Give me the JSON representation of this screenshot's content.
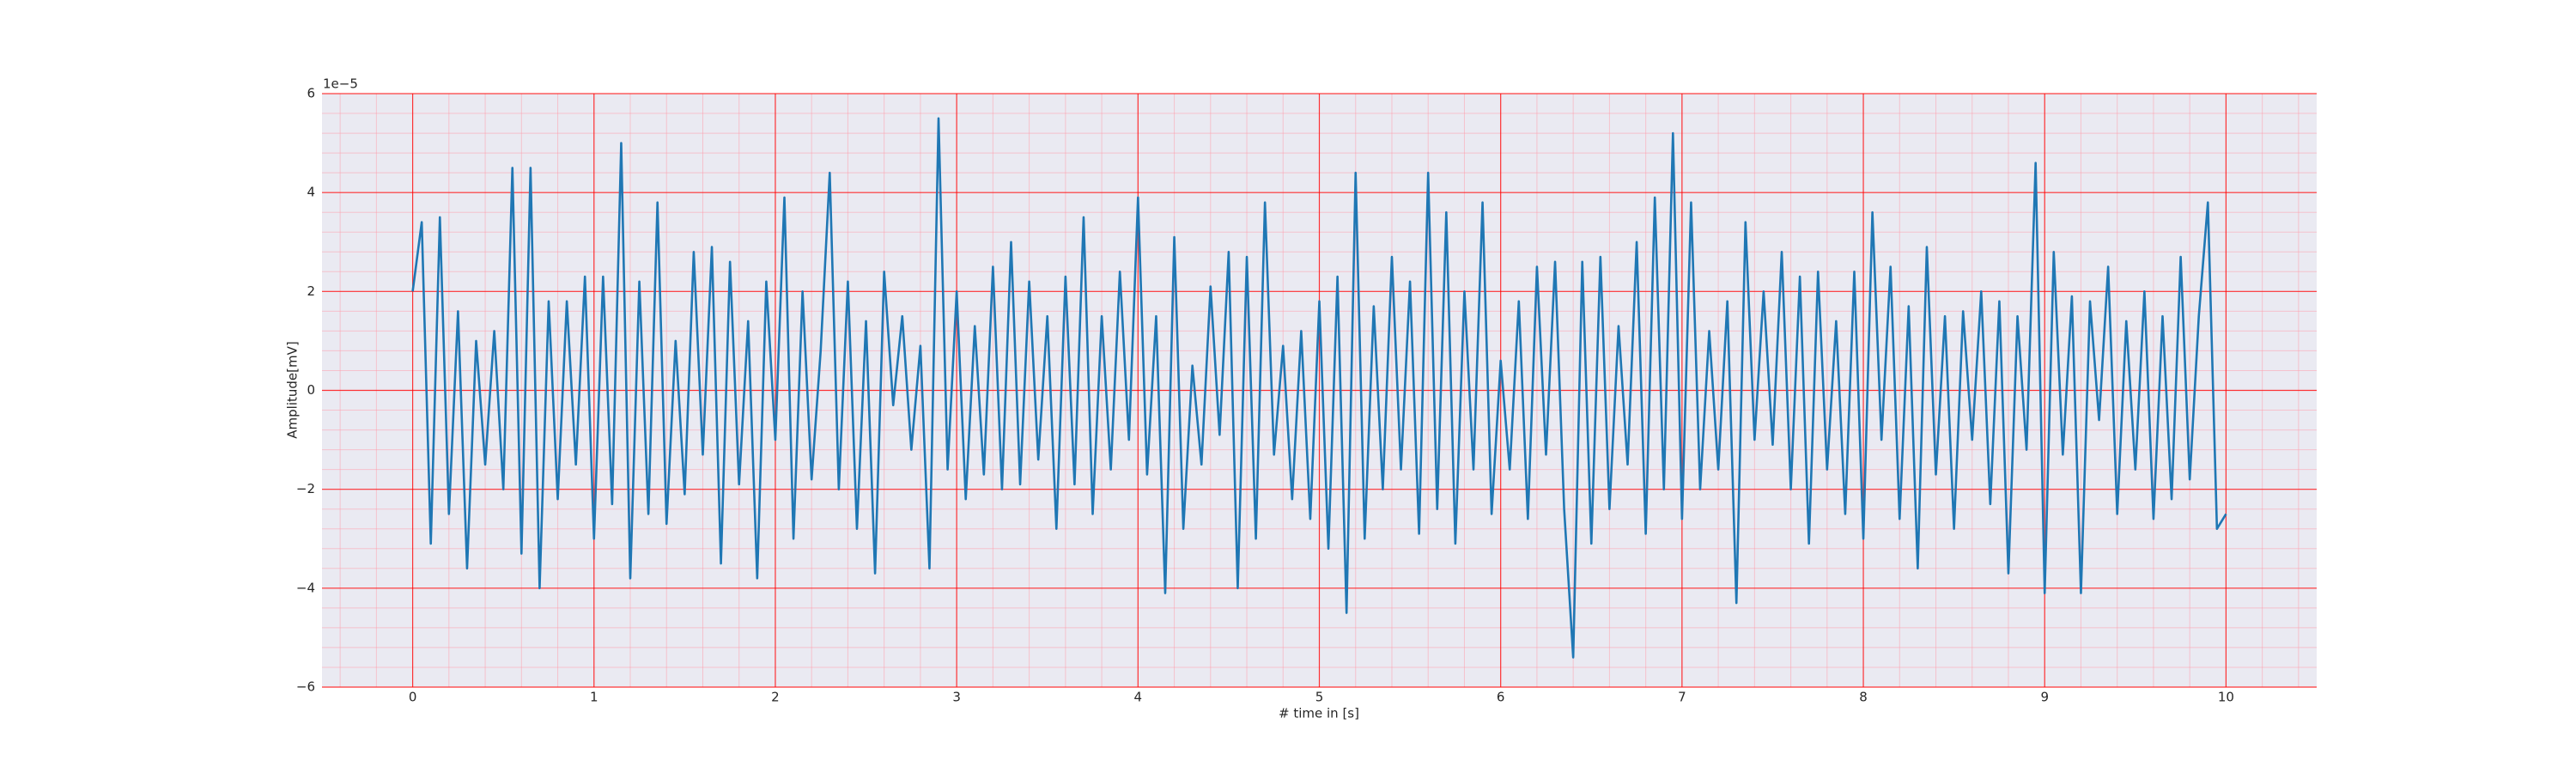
{
  "chart_data": {
    "type": "line",
    "x_label": "# time in [s]",
    "y_label": "Amplitude[mV]",
    "y_offset_label": "1e−5",
    "xlim": [
      -0.5,
      10.5
    ],
    "ylim": [
      -6e-05,
      6e-05
    ],
    "xticks": [
      0,
      1,
      2,
      3,
      4,
      5,
      6,
      7,
      8,
      9,
      10
    ],
    "yticks": [
      {
        "value": -6e-05,
        "label": "−6"
      },
      {
        "value": -4e-05,
        "label": "−4"
      },
      {
        "value": -2e-05,
        "label": "−2"
      },
      {
        "value": 0,
        "label": "0"
      },
      {
        "value": 2e-05,
        "label": "2"
      },
      {
        "value": 4e-05,
        "label": "4"
      },
      {
        "value": 6e-05,
        "label": "6"
      }
    ],
    "grid": true,
    "grid_color": "#ff0000",
    "minor_grid": true,
    "minor_grid_color": "#ff9aa8",
    "minor_divisions": 5,
    "background": "#eaeaf2",
    "series": [
      {
        "color": "#1f77b4",
        "x": [
          0,
          0.05,
          0.1,
          0.15,
          0.2,
          0.25,
          0.3,
          0.35,
          0.4,
          0.45,
          0.5,
          0.55,
          0.6,
          0.65,
          0.7,
          0.75,
          0.8,
          0.85,
          0.9,
          0.95,
          1,
          1.05,
          1.1,
          1.15,
          1.2,
          1.25,
          1.3,
          1.35,
          1.4,
          1.45,
          1.5,
          1.55,
          1.6,
          1.65,
          1.7,
          1.75,
          1.8,
          1.85,
          1.9,
          1.95,
          2,
          2.05,
          2.1,
          2.15,
          2.2,
          2.25,
          2.3,
          2.35,
          2.4,
          2.45,
          2.5,
          2.55,
          2.6,
          2.65,
          2.7,
          2.75,
          2.8,
          2.85,
          2.9,
          2.95,
          3,
          3.05,
          3.1,
          3.15,
          3.2,
          3.25,
          3.3,
          3.35,
          3.4,
          3.45,
          3.5,
          3.55,
          3.6,
          3.65,
          3.7,
          3.75,
          3.8,
          3.85,
          3.9,
          3.95,
          4,
          4.05,
          4.1,
          4.15,
          4.2,
          4.25,
          4.3,
          4.35,
          4.4,
          4.45,
          4.5,
          4.55,
          4.6,
          4.65,
          4.7,
          4.75,
          4.8,
          4.85,
          4.9,
          4.95,
          5,
          5.05,
          5.1,
          5.15,
          5.2,
          5.25,
          5.3,
          5.35,
          5.4,
          5.45,
          5.5,
          5.55,
          5.6,
          5.65,
          5.7,
          5.75,
          5.8,
          5.85,
          5.9,
          5.95,
          6,
          6.05,
          6.1,
          6.15,
          6.2,
          6.25,
          6.3,
          6.35,
          6.4,
          6.45,
          6.5,
          6.55,
          6.6,
          6.65,
          6.7,
          6.75,
          6.8,
          6.85,
          6.9,
          6.95,
          7,
          7.05,
          7.1,
          7.15,
          7.2,
          7.25,
          7.3,
          7.35,
          7.4,
          7.45,
          7.5,
          7.55,
          7.6,
          7.65,
          7.7,
          7.75,
          7.8,
          7.85,
          7.9,
          7.95,
          8,
          8.05,
          8.1,
          8.15,
          8.2,
          8.25,
          8.3,
          8.35,
          8.4,
          8.45,
          8.5,
          8.55,
          8.6,
          8.65,
          8.7,
          8.75,
          8.8,
          8.85,
          8.9,
          8.95,
          9,
          9.05,
          9.1,
          9.15,
          9.2,
          9.25,
          9.3,
          9.35,
          9.4,
          9.45,
          9.5,
          9.55,
          9.6,
          9.65,
          9.7,
          9.75,
          9.8,
          9.85,
          9.9,
          9.95,
          10
        ],
        "values": [
          2e-05,
          3.4e-05,
          -3.1e-05,
          3.5e-05,
          -2.5e-05,
          1.6e-05,
          -3.6e-05,
          1e-05,
          -1.5e-05,
          1.2e-05,
          -2e-05,
          4.5e-05,
          -3.3e-05,
          4.5e-05,
          -4e-05,
          1.8e-05,
          -2.2e-05,
          1.8e-05,
          -1.5e-05,
          2.3e-05,
          -3e-05,
          2.3e-05,
          -2.3e-05,
          5e-05,
          -3.8e-05,
          2.2e-05,
          -2.5e-05,
          3.8e-05,
          -2.7e-05,
          1e-05,
          -2.1e-05,
          2.8e-05,
          -1.3e-05,
          2.9e-05,
          -3.5e-05,
          2.6e-05,
          -1.9e-05,
          1.4e-05,
          -3.8e-05,
          2.2e-05,
          -1e-05,
          3.9e-05,
          -3e-05,
          2e-05,
          -1.8e-05,
          8e-06,
          4.4e-05,
          -2e-05,
          2.2e-05,
          -2.8e-05,
          1.4e-05,
          -3.7e-05,
          2.4e-05,
          -3e-06,
          1.5e-05,
          -1.2e-05,
          9e-06,
          -3.6e-05,
          5.5e-05,
          -1.6e-05,
          2e-05,
          -2.2e-05,
          1.3e-05,
          -1.7e-05,
          2.5e-05,
          -2e-05,
          3e-05,
          -1.9e-05,
          2.2e-05,
          -1.4e-05,
          1.5e-05,
          -2.8e-05,
          2.3e-05,
          -1.9e-05,
          3.5e-05,
          -2.5e-05,
          1.5e-05,
          -1.6e-05,
          2.4e-05,
          -1e-05,
          3.9e-05,
          -1.7e-05,
          1.5e-05,
          -4.1e-05,
          3.1e-05,
          -2.8e-05,
          5e-06,
          -1.5e-05,
          2.1e-05,
          -9e-06,
          2.8e-05,
          -4e-05,
          2.7e-05,
          -3e-05,
          3.8e-05,
          -1.3e-05,
          9e-06,
          -2.2e-05,
          1.2e-05,
          -2.6e-05,
          1.8e-05,
          -3.2e-05,
          2.3e-05,
          -4.5e-05,
          4.4e-05,
          -3e-05,
          1.7e-05,
          -2e-05,
          2.7e-05,
          -1.6e-05,
          2.2e-05,
          -2.9e-05,
          4.4e-05,
          -2.4e-05,
          3.6e-05,
          -3.1e-05,
          2e-05,
          -1.6e-05,
          3.8e-05,
          -2.5e-05,
          6e-06,
          -1.6e-05,
          1.8e-05,
          -2.6e-05,
          2.5e-05,
          -1.3e-05,
          2.6e-05,
          -2.4e-05,
          -5.4e-05,
          2.6e-05,
          -3.1e-05,
          2.7e-05,
          -2.4e-05,
          1.3e-05,
          -1.5e-05,
          3e-05,
          -2.9e-05,
          3.9e-05,
          -2e-05,
          5.2e-05,
          -2.6e-05,
          3.8e-05,
          -2e-05,
          1.2e-05,
          -1.6e-05,
          1.8e-05,
          -4.3e-05,
          3.4e-05,
          -1e-05,
          2e-05,
          -1.1e-05,
          2.8e-05,
          -2e-05,
          2.3e-05,
          -3.1e-05,
          2.4e-05,
          -1.6e-05,
          1.4e-05,
          -2.5e-05,
          2.4e-05,
          -3e-05,
          3.6e-05,
          -1e-05,
          2.5e-05,
          -2.6e-05,
          1.7e-05,
          -3.6e-05,
          2.9e-05,
          -1.7e-05,
          1.5e-05,
          -2.8e-05,
          1.6e-05,
          -1e-05,
          2e-05,
          -2.3e-05,
          1.8e-05,
          -3.7e-05,
          1.5e-05,
          -1.2e-05,
          4.6e-05,
          -4.1e-05,
          2.8e-05,
          -1.3e-05,
          1.9e-05,
          -4.1e-05,
          1.8e-05,
          -6e-06,
          2.5e-05,
          -2.5e-05,
          1.4e-05,
          -1.6e-05,
          2e-05,
          -2.6e-05,
          1.5e-05,
          -2.2e-05,
          2.7e-05,
          -1.8e-05,
          1.5e-05,
          3.8e-05,
          -2.8e-05,
          -2.5e-05
        ]
      }
    ]
  }
}
